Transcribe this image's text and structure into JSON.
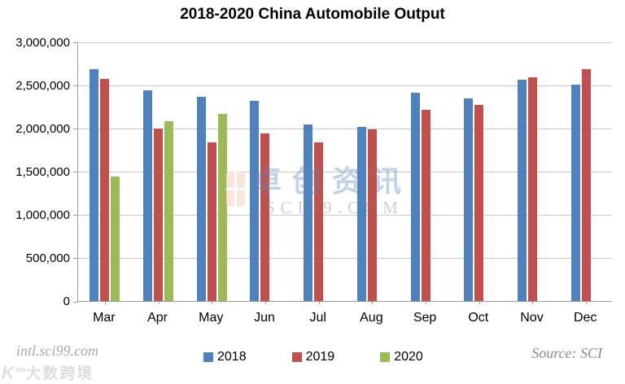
{
  "title": "2018-2020 China Automobile Output",
  "watermark": {
    "line1": "卓创资讯",
    "line2": "SCI99.COM",
    "logo": "sci-orange-tile"
  },
  "footer": {
    "site": "intl.sci99.com",
    "logo_mark": "K",
    "logo_text": "大数跨境",
    "source": "Source: SCI"
  },
  "colors": {
    "series_2018": "#4F81BD",
    "series_2019": "#C0504D",
    "series_2020": "#9BBB59",
    "gridline": "#c9c9c9",
    "axis": "#9b9b9b"
  },
  "chart_data": {
    "type": "bar",
    "title": "2018-2020 China Automobile Output",
    "xlabel": "",
    "ylabel": "",
    "categories": [
      "Mar",
      "Apr",
      "May",
      "Jun",
      "Jul",
      "Aug",
      "Sep",
      "Oct",
      "Nov",
      "Dec"
    ],
    "series": [
      {
        "name": "2018",
        "color": "#4F81BD",
        "values": [
          2700000,
          2450000,
          2380000,
          2330000,
          2050000,
          2030000,
          2420000,
          2360000,
          2570000,
          2520000
        ]
      },
      {
        "name": "2019",
        "color": "#C0504D",
        "values": [
          2580000,
          2010000,
          1850000,
          1950000,
          1850000,
          2000000,
          2220000,
          2280000,
          2600000,
          2700000
        ]
      },
      {
        "name": "2020",
        "color": "#9BBB59",
        "values": [
          1450000,
          2090000,
          2180000,
          null,
          null,
          null,
          null,
          null,
          null,
          null
        ]
      }
    ],
    "ylim": [
      0,
      3000000
    ],
    "ytick_step": 500000,
    "ytick_labels": [
      "0",
      "500,000",
      "1,000,000",
      "1,500,000",
      "2,000,000",
      "2,500,000",
      "3,000,000"
    ],
    "grid": true,
    "legend_position": "bottom"
  }
}
